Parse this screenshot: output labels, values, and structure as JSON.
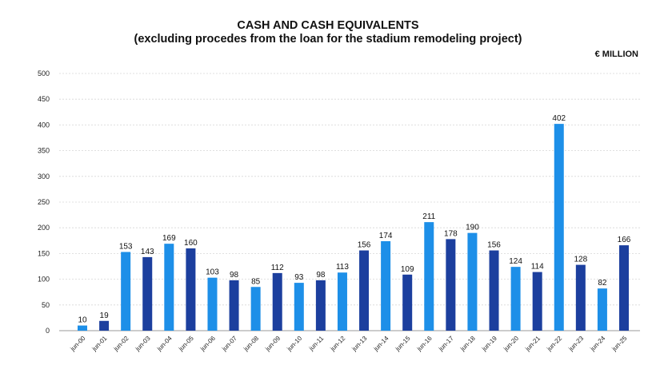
{
  "chart_data": {
    "type": "bar",
    "title": "CASH AND CASH EQUIVALENTS",
    "subtitle": "(excluding procedes from the loan for the stadium remodeling project)",
    "unit_label": "€ MILLION",
    "xlabel": "",
    "ylabel": "",
    "ylim": [
      0,
      500
    ],
    "yticks": [
      0,
      50,
      100,
      150,
      200,
      250,
      300,
      350,
      400,
      450,
      500
    ],
    "grid": true,
    "categories": [
      "jun-00",
      "jun-01",
      "jun-02",
      "jun-03",
      "jun-04",
      "jun-05",
      "jun-06",
      "jun-07",
      "jun-08",
      "jun-09",
      "jun-10",
      "jun-11",
      "jun-12",
      "jun-13",
      "jun-14",
      "jun-15",
      "jun-16",
      "jun-17",
      "jun-18",
      "jun-19",
      "jun-20",
      "jun-21",
      "jun-22",
      "jun-23",
      "jun-24",
      "jun-25"
    ],
    "values": [
      10,
      19,
      153,
      143,
      169,
      160,
      103,
      98,
      85,
      112,
      93,
      98,
      113,
      156,
      174,
      109,
      211,
      178,
      190,
      156,
      124,
      114,
      402,
      128,
      82,
      166
    ],
    "bar_colors": [
      "#1d8fe8",
      "#1c3f9e",
      "#1d8fe8",
      "#1c3f9e",
      "#1d8fe8",
      "#1c3f9e",
      "#1d8fe8",
      "#1c3f9e",
      "#1d8fe8",
      "#1c3f9e",
      "#1d8fe8",
      "#1c3f9e",
      "#1d8fe8",
      "#1c3f9e",
      "#1d8fe8",
      "#1c3f9e",
      "#1d8fe8",
      "#1c3f9e",
      "#1d8fe8",
      "#1c3f9e",
      "#1d8fe8",
      "#1c3f9e",
      "#1d8fe8",
      "#1c3f9e",
      "#1d8fe8",
      "#1c3f9e"
    ]
  }
}
